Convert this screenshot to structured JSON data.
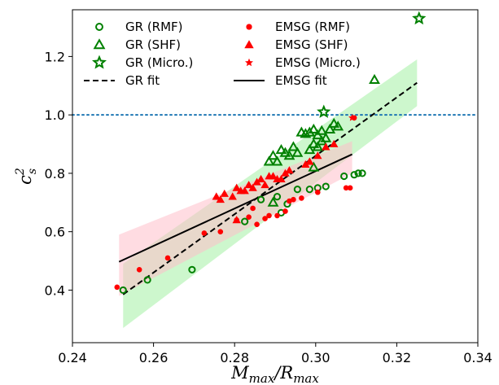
{
  "chart_data": {
    "type": "scatter",
    "xlabel": "M_max/R_max",
    "ylabel": "c_s^2",
    "xlim": [
      0.24,
      0.34
    ],
    "ylim": [
      0.22,
      1.36
    ],
    "xticks": [
      0.24,
      0.26,
      0.28,
      0.3,
      0.32,
      0.34
    ],
    "yticks": [
      0.4,
      0.6,
      0.8,
      1.0,
      1.2
    ],
    "grid": false,
    "legend_placement": "top-left",
    "reference_line": {
      "y": 1.0,
      "style": "dotted",
      "color": "#1f77b4"
    },
    "colors": {
      "gr": "#008000",
      "emsg": "#ff0000",
      "gr_band": "#90ee90",
      "emsg_band": "#ffc0cb"
    },
    "series": [
      {
        "name": "GR (RMF)",
        "marker": "circle-open",
        "color": "#008000",
        "points": [
          [
            0.2525,
            0.4
          ],
          [
            0.2585,
            0.435
          ],
          [
            0.2695,
            0.47
          ],
          [
            0.2825,
            0.635
          ],
          [
            0.2865,
            0.71
          ],
          [
            0.2905,
            0.72
          ],
          [
            0.2915,
            0.665
          ],
          [
            0.293,
            0.695
          ],
          [
            0.2955,
            0.745
          ],
          [
            0.2985,
            0.745
          ],
          [
            0.3005,
            0.75
          ],
          [
            0.3025,
            0.755
          ],
          [
            0.307,
            0.79
          ],
          [
            0.3095,
            0.795
          ],
          [
            0.3105,
            0.8
          ],
          [
            0.3115,
            0.8
          ]
        ]
      },
      {
        "name": "GR (SHF)",
        "marker": "triangle-open",
        "color": "#008000",
        "points": [
          [
            0.2895,
            0.7
          ],
          [
            0.2885,
            0.84
          ],
          [
            0.2895,
            0.86
          ],
          [
            0.2915,
            0.88
          ],
          [
            0.2925,
            0.87
          ],
          [
            0.2935,
            0.86
          ],
          [
            0.2945,
            0.89
          ],
          [
            0.2955,
            0.87
          ],
          [
            0.2985,
            0.88
          ],
          [
            0.2995,
            0.9
          ],
          [
            0.3005,
            0.89
          ],
          [
            0.3015,
            0.91
          ],
          [
            0.3025,
            0.92
          ],
          [
            0.3005,
            0.93
          ],
          [
            0.2965,
            0.94
          ],
          [
            0.2975,
            0.935
          ],
          [
            0.2985,
            0.94
          ],
          [
            0.2995,
            0.95
          ],
          [
            0.3015,
            0.945
          ],
          [
            0.3035,
            0.95
          ],
          [
            0.3045,
            0.97
          ],
          [
            0.3055,
            0.96
          ],
          [
            0.3145,
            1.12
          ],
          [
            0.2995,
            0.82
          ],
          [
            0.2905,
            0.84
          ]
        ]
      },
      {
        "name": "GR (Micro.)",
        "marker": "star-open",
        "color": "#008000",
        "points": [
          [
            0.302,
            1.01
          ],
          [
            0.3255,
            1.33
          ]
        ]
      },
      {
        "name": "EMSG (RMF)",
        "marker": "circle-filled",
        "color": "#ff0000",
        "points": [
          [
            0.251,
            0.41
          ],
          [
            0.2565,
            0.47
          ],
          [
            0.2635,
            0.51
          ],
          [
            0.2725,
            0.595
          ],
          [
            0.2765,
            0.6
          ],
          [
            0.2805,
            0.64
          ],
          [
            0.2835,
            0.65
          ],
          [
            0.2845,
            0.68
          ],
          [
            0.2855,
            0.625
          ],
          [
            0.2875,
            0.645
          ],
          [
            0.2885,
            0.655
          ],
          [
            0.2905,
            0.655
          ],
          [
            0.2925,
            0.67
          ],
          [
            0.2935,
            0.705
          ],
          [
            0.2945,
            0.71
          ],
          [
            0.2965,
            0.715
          ],
          [
            0.3005,
            0.735
          ],
          [
            0.3075,
            0.75
          ],
          [
            0.3085,
            0.75
          ],
          [
            0.3095,
            0.99
          ]
        ]
      },
      {
        "name": "EMSG (SHF)",
        "marker": "triangle-filled",
        "color": "#ff0000",
        "points": [
          [
            0.2755,
            0.72
          ],
          [
            0.2765,
            0.71
          ],
          [
            0.2775,
            0.73
          ],
          [
            0.2795,
            0.72
          ],
          [
            0.2805,
            0.75
          ],
          [
            0.2815,
            0.74
          ],
          [
            0.2825,
            0.74
          ],
          [
            0.2835,
            0.76
          ],
          [
            0.2845,
            0.75
          ],
          [
            0.2855,
            0.77
          ],
          [
            0.2865,
            0.78
          ],
          [
            0.2875,
            0.76
          ],
          [
            0.2885,
            0.79
          ],
          [
            0.2895,
            0.79
          ],
          [
            0.2915,
            0.78
          ],
          [
            0.2925,
            0.8
          ],
          [
            0.2935,
            0.81
          ],
          [
            0.2975,
            0.83
          ],
          [
            0.2985,
            0.84
          ],
          [
            0.3005,
            0.86
          ],
          [
            0.3025,
            0.89
          ],
          [
            0.3045,
            0.9
          ],
          [
            0.2805,
            0.64
          ],
          [
            0.2905,
            0.78
          ]
        ]
      },
      {
        "name": "EMSG (Micro.)",
        "marker": "star-filled",
        "color": "#ff0000",
        "points": [
          [
            0.309,
            0.99
          ]
        ]
      }
    ],
    "fits": [
      {
        "name": "GR fit",
        "style": "dashed",
        "color": "#000000",
        "x": [
          0.2525,
          0.325
        ],
        "y": [
          0.385,
          1.11
        ],
        "band": {
          "x": [
            0.2525,
            0.325
          ],
          "lower": [
            0.27,
            1.03
          ],
          "upper": [
            0.49,
            1.19
          ]
        }
      },
      {
        "name": "EMSG fit",
        "style": "solid",
        "color": "#000000",
        "x": [
          0.2515,
          0.309
        ],
        "y": [
          0.497,
          0.865
        ],
        "band": {
          "x": [
            0.2515,
            0.309
          ],
          "lower": [
            0.38,
            0.8
          ],
          "upper": [
            0.59,
            0.91
          ]
        }
      }
    ],
    "legend": [
      {
        "label": "GR (RMF)",
        "marker": "circle-open",
        "color": "#008000"
      },
      {
        "label": "EMSG (RMF)",
        "marker": "circle-filled",
        "color": "#ff0000"
      },
      {
        "label": "GR (SHF)",
        "marker": "triangle-open",
        "color": "#008000"
      },
      {
        "label": "EMSG (SHF)",
        "marker": "triangle-filled",
        "color": "#ff0000"
      },
      {
        "label": "GR (Micro.)",
        "marker": "star-open",
        "color": "#008000"
      },
      {
        "label": "EMSG (Micro.)",
        "marker": "star-filled",
        "color": "#ff0000"
      },
      {
        "label": "GR fit",
        "marker": "line-dashed",
        "color": "#000000"
      },
      {
        "label": "EMSG fit",
        "marker": "line-solid",
        "color": "#000000"
      }
    ]
  }
}
